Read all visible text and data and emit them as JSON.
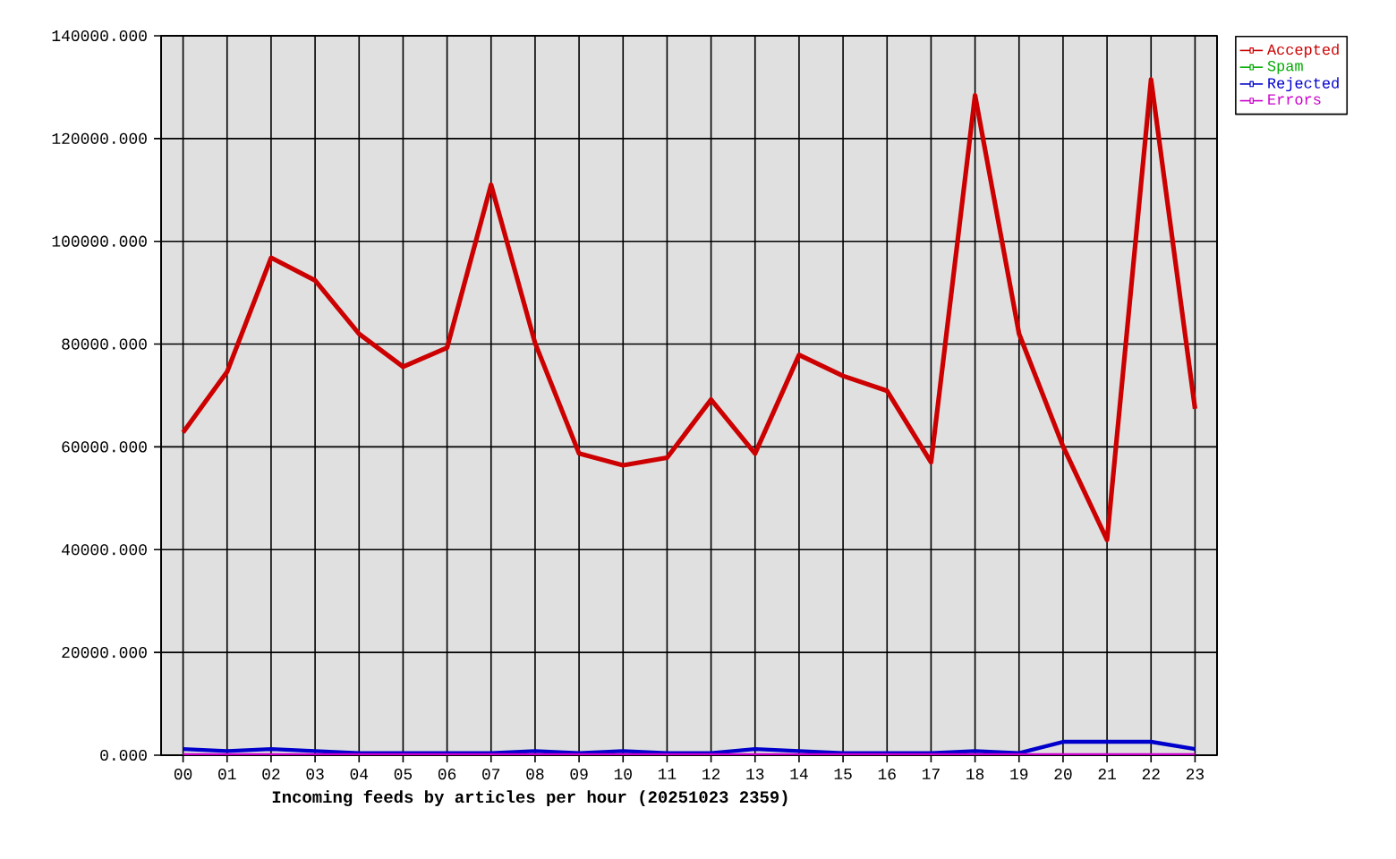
{
  "chart_data": {
    "type": "line",
    "xlabel": "Incoming feeds by articles per hour (20251023 2359)",
    "categories": [
      "00",
      "01",
      "02",
      "03",
      "04",
      "05",
      "06",
      "07",
      "08",
      "09",
      "10",
      "11",
      "12",
      "13",
      "14",
      "15",
      "16",
      "17",
      "18",
      "19",
      "20",
      "21",
      "22",
      "23"
    ],
    "series": [
      {
        "name": "Accepted",
        "color": "#cc0000",
        "values": [
          62800,
          74600,
          96800,
          92400,
          82000,
          75600,
          79300,
          111000,
          80200,
          58700,
          56400,
          57900,
          69200,
          58700,
          77900,
          73800,
          70900,
          57000,
          128400,
          82000,
          60100,
          41900,
          131500,
          67400
        ]
      },
      {
        "name": "Spam",
        "color": "#00aa00",
        "values": [
          null,
          null,
          null,
          null,
          null,
          null,
          null,
          null,
          null,
          null,
          null,
          null,
          null,
          null,
          null,
          null,
          null,
          null,
          null,
          null,
          null,
          null,
          null,
          null
        ]
      },
      {
        "name": "Rejected",
        "color": "#0000cc",
        "values": [
          1200,
          800,
          1200,
          800,
          400,
          400,
          400,
          400,
          800,
          400,
          800,
          400,
          400,
          1200,
          800,
          400,
          400,
          400,
          800,
          400,
          2600,
          2600,
          2600,
          1200
        ]
      },
      {
        "name": "Errors",
        "color": "#cc00cc",
        "values": [
          0,
          0,
          0,
          0,
          0,
          0,
          0,
          0,
          0,
          0,
          0,
          0,
          0,
          0,
          0,
          0,
          0,
          0,
          0,
          0,
          0,
          0,
          0,
          0
        ]
      }
    ],
    "ylim": [
      0,
      140000
    ],
    "yticks": [
      {
        "value": 0,
        "label": "0.000"
      },
      {
        "value": 20000,
        "label": "20000.000"
      },
      {
        "value": 40000,
        "label": "40000.000"
      },
      {
        "value": 60000,
        "label": "60000.000"
      },
      {
        "value": 80000,
        "label": "80000.000"
      },
      {
        "value": 100000,
        "label": "100000.000"
      },
      {
        "value": 120000,
        "label": "120000.000"
      },
      {
        "value": 140000,
        "label": "140000.000"
      }
    ],
    "grid": true,
    "legend": "top right"
  }
}
